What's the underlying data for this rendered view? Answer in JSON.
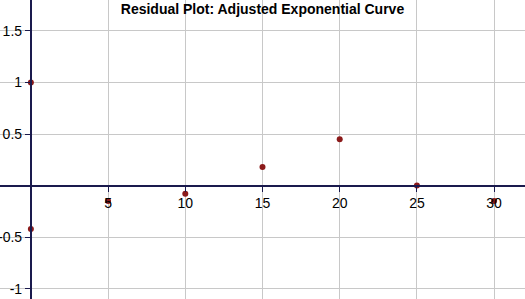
{
  "chart_data": {
    "type": "scatter",
    "title": "Residual Plot: Adjusted Exponential Curve",
    "x": [
      0,
      0,
      5,
      10,
      15,
      20,
      25,
      30
    ],
    "values": [
      1,
      -0.42,
      -0.15,
      -0.08,
      0.18,
      0.45,
      0,
      -0.15
    ],
    "color": "#8b1a1a",
    "marker": "circle",
    "xlim": [
      -2,
      32
    ],
    "xticks": [
      5,
      10,
      15,
      20,
      25,
      30
    ],
    "ylim": [
      -1.1,
      1.8
    ],
    "yticks": [
      -1,
      -0.5,
      0.5,
      1,
      1.5
    ],
    "grid": true
  }
}
